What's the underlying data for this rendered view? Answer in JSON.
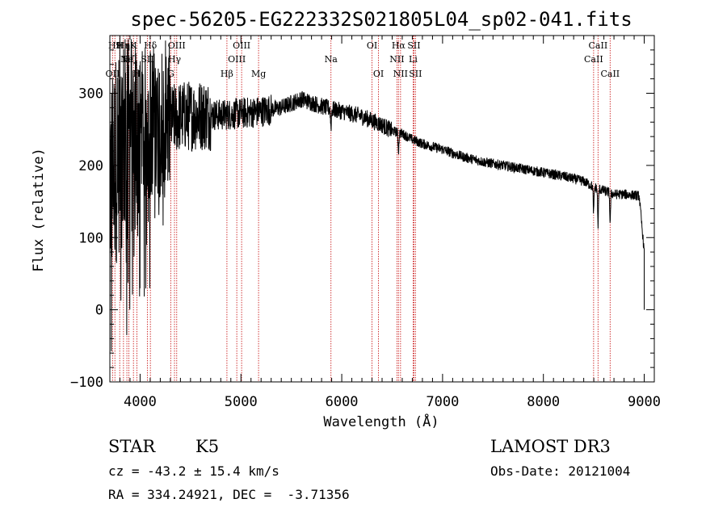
{
  "chart_data": {
    "type": "line",
    "title": "spec-56205-EG222332S021805L04_sp02-041.fits",
    "xlabel": "Wavelength (Å)",
    "ylabel": "Flux (relative)",
    "xlim": [
      3700,
      9100
    ],
    "ylim": [
      -100,
      380
    ],
    "x_ticks": [
      4000,
      5000,
      6000,
      7000,
      8000,
      9000
    ],
    "y_ticks": [
      -100,
      0,
      100,
      200,
      300
    ],
    "x_tick_labels": [
      "4000",
      "5000",
      "6000",
      "7000",
      "8000",
      "9000"
    ],
    "y_tick_labels": [
      "−100",
      "0",
      "100",
      "200",
      "300"
    ],
    "spectrum_envelope": {
      "x": [
        3700,
        3800,
        3900,
        4000,
        4100,
        4200,
        4300,
        4400,
        4600,
        4800,
        5000,
        5200,
        5400,
        5600,
        5800,
        5900,
        6000,
        6200,
        6400,
        6500,
        6600,
        6700,
        6800,
        7000,
        7200,
        7400,
        7600,
        7800,
        8000,
        8200,
        8400,
        8500,
        8600,
        8700,
        8800,
        8950,
        9000
      ],
      "y": [
        180,
        230,
        245,
        250,
        262,
        265,
        262,
        268,
        270,
        270,
        272,
        275,
        280,
        292,
        282,
        278,
        275,
        268,
        256,
        248,
        244,
        236,
        230,
        222,
        212,
        205,
        200,
        195,
        190,
        185,
        178,
        170,
        165,
        160,
        160,
        158,
        80
      ],
      "noise_by_region": [
        {
          "from": 3700,
          "to": 4000,
          "amplitude": 150
        },
        {
          "from": 4000,
          "to": 4300,
          "amplitude": 110
        },
        {
          "from": 4300,
          "to": 4700,
          "amplitude": 50
        },
        {
          "from": 4700,
          "to": 5300,
          "amplitude": 22
        },
        {
          "from": 5300,
          "to": 6500,
          "amplitude": 12
        },
        {
          "from": 6500,
          "to": 9000,
          "amplitude": 7
        }
      ],
      "absorption_dips": [
        {
          "x": 5893,
          "depth": 25
        },
        {
          "x": 6563,
          "depth": 25
        },
        {
          "x": 8498,
          "depth": 35
        },
        {
          "x": 8542,
          "depth": 50
        },
        {
          "x": 8662,
          "depth": 40
        }
      ]
    },
    "reference_lines": [
      {
        "wavelength": 3727,
        "label": "OII",
        "row": 3
      },
      {
        "wavelength": 3750,
        "label": "H9",
        "row": 1
      },
      {
        "wavelength": 3798,
        "label": "H",
        "row": 1
      },
      {
        "wavelength": 3835,
        "label": "Hη",
        "row": 1
      },
      {
        "wavelength": 3869,
        "label": "Ne",
        "row": 2
      },
      {
        "wavelength": 3889,
        "label": "Hζ",
        "row": 2
      },
      {
        "wavelength": 3934,
        "label": "K",
        "row": 1
      },
      {
        "wavelength": 3968,
        "label": "H",
        "row": 3
      },
      {
        "wavelength": 4072,
        "label": "SII",
        "row": 2
      },
      {
        "wavelength": 4102,
        "label": "Hδ",
        "row": 1
      },
      {
        "wavelength": 4304,
        "label": "G",
        "row": 3
      },
      {
        "wavelength": 4341,
        "label": "Hγ",
        "row": 2
      },
      {
        "wavelength": 4363,
        "label": "OIII",
        "row": 1
      },
      {
        "wavelength": 4861,
        "label": "Hβ",
        "row": 3
      },
      {
        "wavelength": 4959,
        "label": "OIII",
        "row": 2
      },
      {
        "wavelength": 5007,
        "label": "OIII",
        "row": 1
      },
      {
        "wavelength": 5175,
        "label": "Mg",
        "row": 3
      },
      {
        "wavelength": 5893,
        "label": "Na",
        "row": 2
      },
      {
        "wavelength": 6300,
        "label": "OI",
        "row": 1
      },
      {
        "wavelength": 6364,
        "label": "OI",
        "row": 3
      },
      {
        "wavelength": 6548,
        "label": "NII",
        "row": 2
      },
      {
        "wavelength": 6563,
        "label": "Hα",
        "row": 1
      },
      {
        "wavelength": 6583,
        "label": "NII",
        "row": 3
      },
      {
        "wavelength": 6708,
        "label": "Li",
        "row": 2
      },
      {
        "wavelength": 6716,
        "label": "SII",
        "row": 1
      },
      {
        "wavelength": 6731,
        "label": "SII",
        "row": 3
      },
      {
        "wavelength": 8498,
        "label": "CaII",
        "row": 2
      },
      {
        "wavelength": 8542,
        "label": "CaII",
        "row": 1
      },
      {
        "wavelength": 8662,
        "label": "CaII",
        "row": 3
      }
    ]
  },
  "info": {
    "object_class": "STAR",
    "subclass": "K5",
    "redshift": "cz = -43.2 ± 15.4 km/s",
    "coords": "RA = 334.24921, DEC =  -3.71356",
    "survey": "LAMOST DR3",
    "obs_date": "Obs-Date: 20121004"
  },
  "colors": {
    "spectrum": "#000000",
    "reference_line": "#cc2222",
    "axis": "#000000",
    "background": "#ffffff"
  }
}
